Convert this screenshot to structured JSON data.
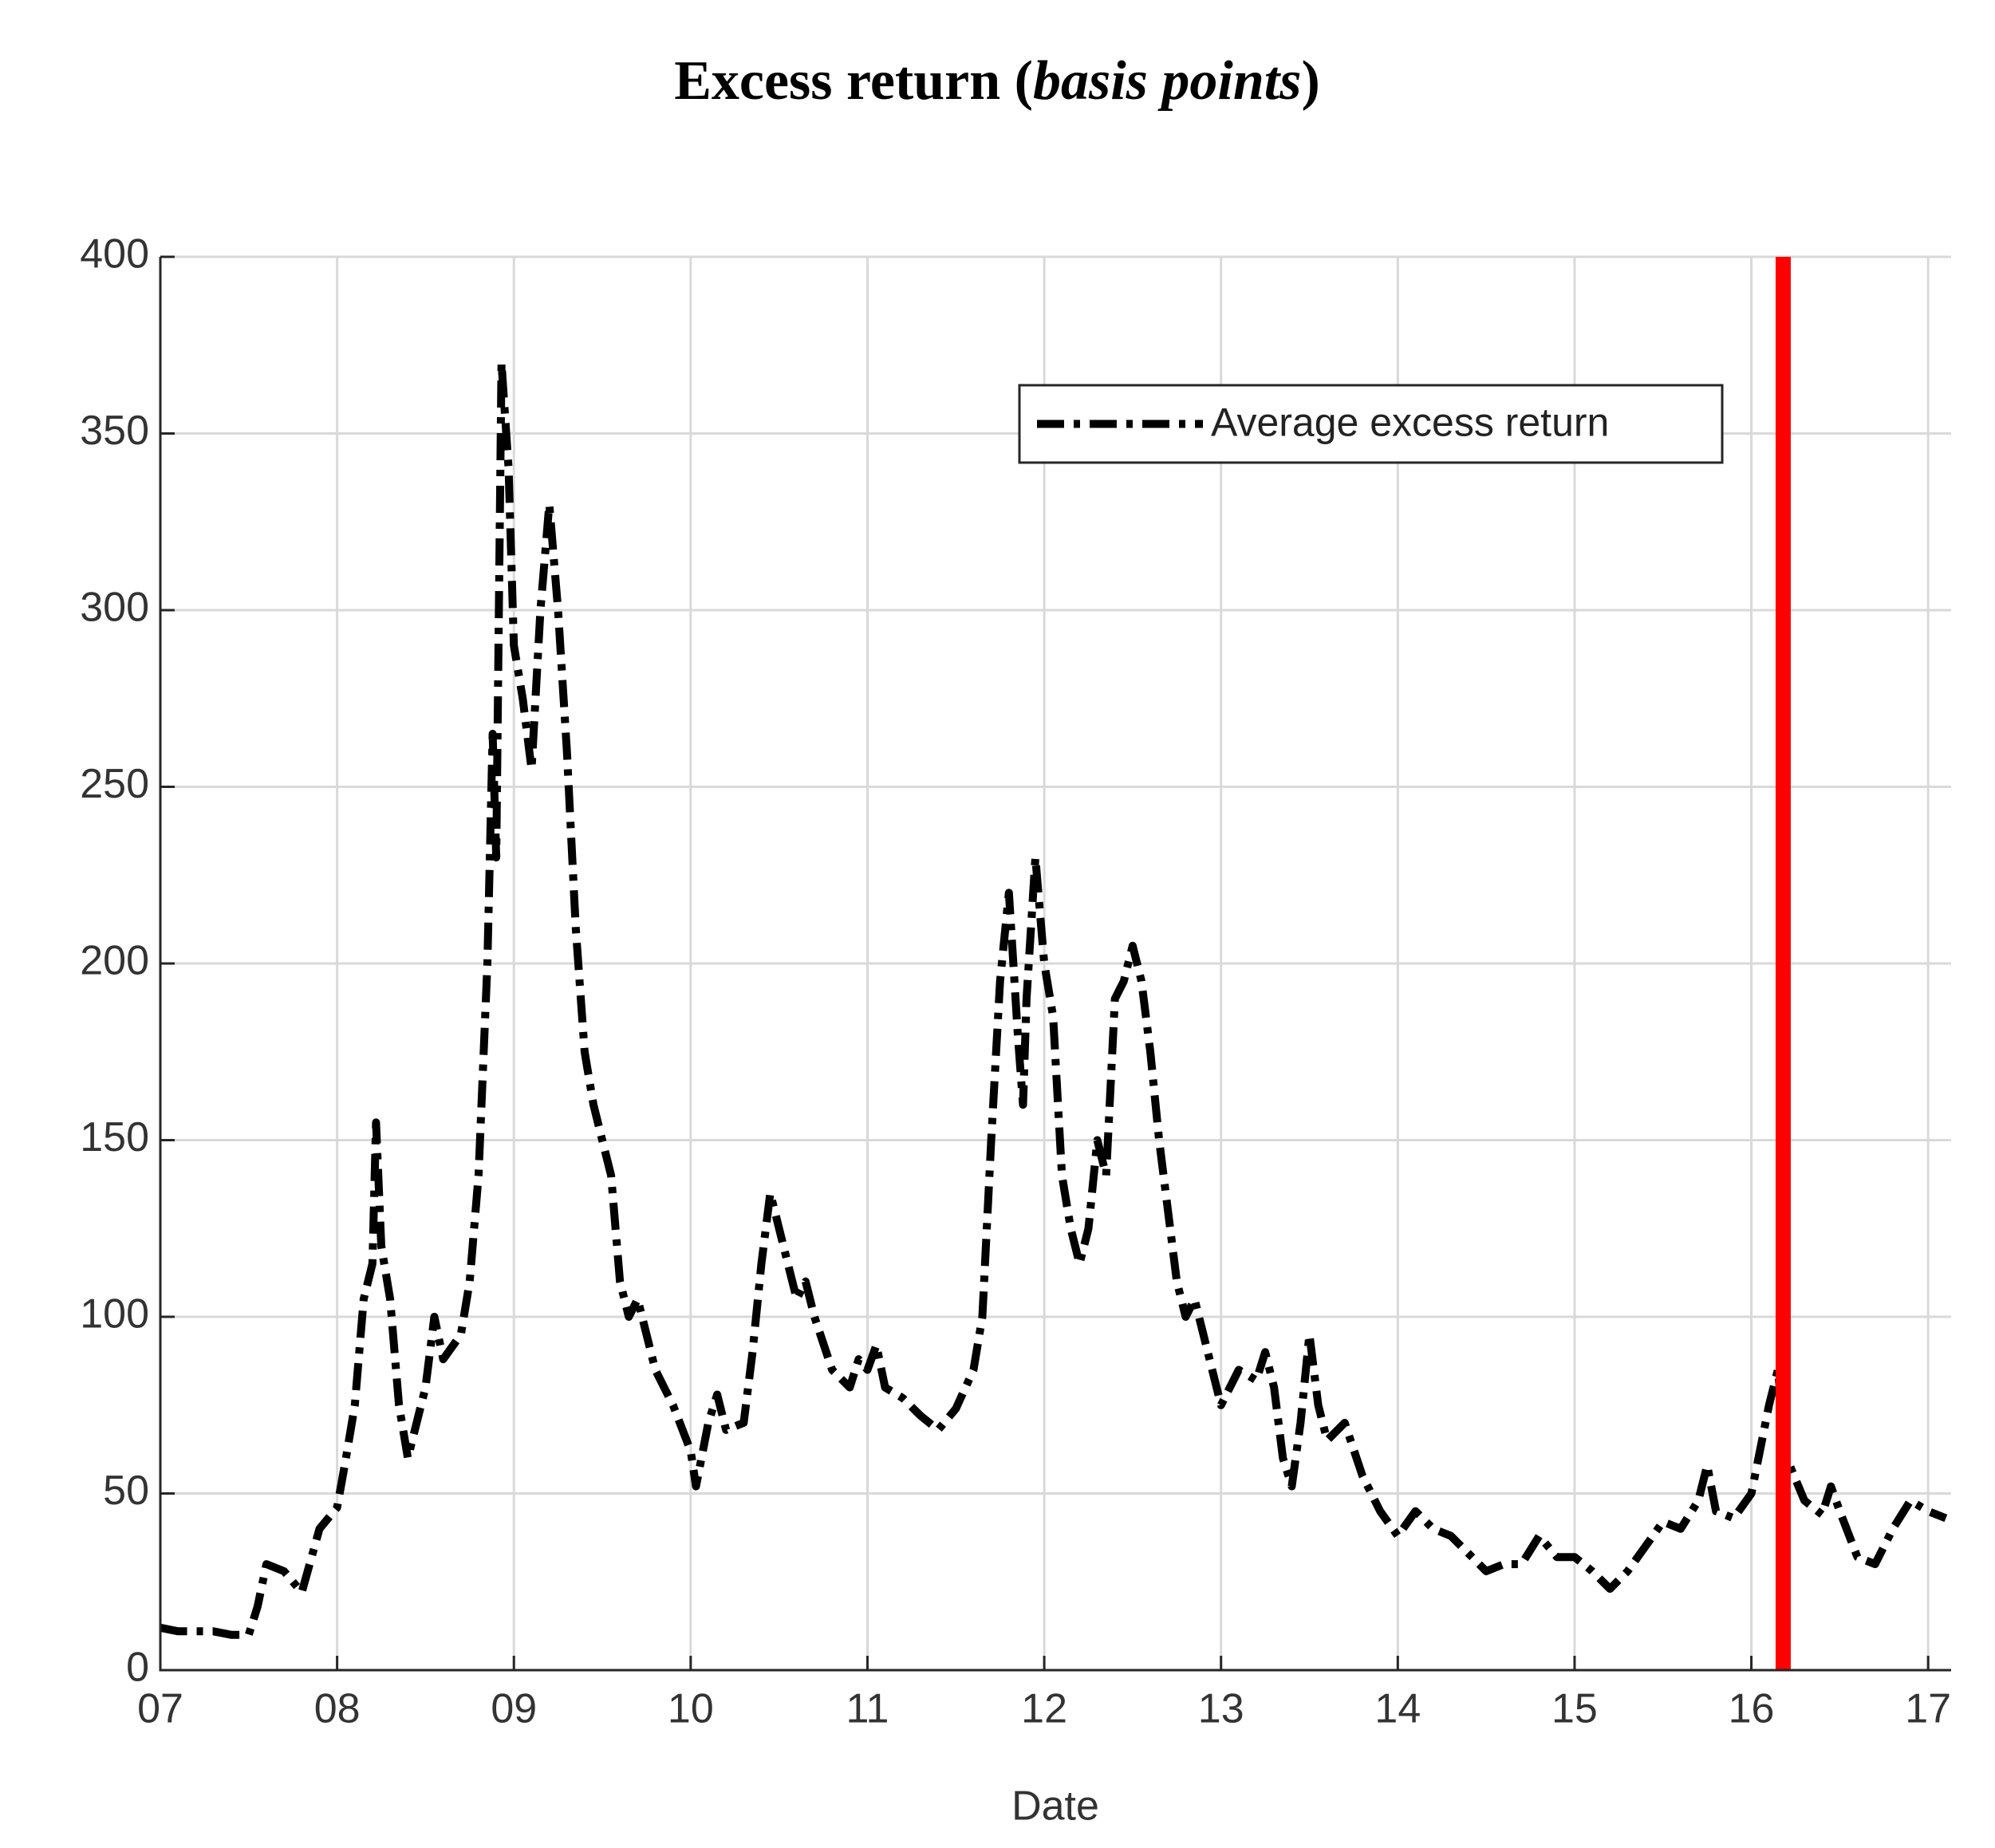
{
  "chart_data": {
    "type": "line",
    "title": [
      "Excess return (",
      "basis points",
      ")"
    ],
    "xlabel": "Date",
    "xlim": [
      7,
      17.13
    ],
    "ylim": [
      0,
      400
    ],
    "xticks": [
      {
        "value": 7,
        "label": "07"
      },
      {
        "value": 8,
        "label": "08"
      },
      {
        "value": 9,
        "label": "09"
      },
      {
        "value": 10,
        "label": "10"
      },
      {
        "value": 11,
        "label": "11"
      },
      {
        "value": 12,
        "label": "12"
      },
      {
        "value": 13,
        "label": "13"
      },
      {
        "value": 14,
        "label": "14"
      },
      {
        "value": 15,
        "label": "15"
      },
      {
        "value": 16,
        "label": "16"
      },
      {
        "value": 17,
        "label": "17"
      }
    ],
    "yticks": [
      0,
      50,
      100,
      150,
      200,
      250,
      300,
      350,
      400
    ],
    "grid": true,
    "legend": "upper right",
    "vline": {
      "x": 16.18,
      "color": "#ff0000"
    },
    "x": [
      7.0,
      7.1,
      7.2,
      7.3,
      7.4,
      7.5,
      7.55,
      7.6,
      7.7,
      7.8,
      7.9,
      8.0,
      8.05,
      8.1,
      8.15,
      8.2,
      8.22,
      8.25,
      8.3,
      8.35,
      8.4,
      8.45,
      8.5,
      8.55,
      8.6,
      8.7,
      8.75,
      8.8,
      8.85,
      8.88,
      8.9,
      8.93,
      8.97,
      9.0,
      9.05,
      9.1,
      9.15,
      9.2,
      9.25,
      9.3,
      9.35,
      9.4,
      9.45,
      9.5,
      9.55,
      9.6,
      9.65,
      9.7,
      9.75,
      9.8,
      9.9,
      10.0,
      10.03,
      10.1,
      10.15,
      10.2,
      10.3,
      10.35,
      10.4,
      10.45,
      10.5,
      10.55,
      10.6,
      10.65,
      10.7,
      10.8,
      10.9,
      10.95,
      11.0,
      11.05,
      11.1,
      11.2,
      11.3,
      11.4,
      11.5,
      11.6,
      11.65,
      11.7,
      11.75,
      11.8,
      11.85,
      11.88,
      11.9,
      11.95,
      12.0,
      12.05,
      12.1,
      12.15,
      12.2,
      12.25,
      12.3,
      12.35,
      12.4,
      12.45,
      12.5,
      12.55,
      12.6,
      12.65,
      12.7,
      12.75,
      12.8,
      12.85,
      12.9,
      13.0,
      13.05,
      13.1,
      13.2,
      13.25,
      13.3,
      13.35,
      13.4,
      13.45,
      13.5,
      13.55,
      13.6,
      13.7,
      13.8,
      13.9,
      14.0,
      14.1,
      14.2,
      14.3,
      14.4,
      14.5,
      14.6,
      14.7,
      14.8,
      14.9,
      15.0,
      15.1,
      15.2,
      15.3,
      15.4,
      15.5,
      15.6,
      15.7,
      15.75,
      15.8,
      15.9,
      16.0,
      16.1,
      16.15,
      16.2,
      16.3,
      16.4,
      16.45,
      16.5,
      16.6,
      16.7,
      16.8,
      16.9,
      17.0,
      17.1
    ],
    "series": [
      {
        "name": "Average excess return",
        "color": "#000000",
        "values": [
          12,
          11,
          11,
          11,
          10,
          10,
          18,
          30,
          28,
          22,
          40,
          46,
          60,
          75,
          105,
          115,
          155,
          120,
          105,
          75,
          60,
          70,
          80,
          100,
          88,
          95,
          110,
          140,
          200,
          265,
          230,
          370,
          340,
          290,
          275,
          255,
          300,
          330,
          300,
          260,
          210,
          175,
          160,
          150,
          140,
          110,
          100,
          105,
          95,
          85,
          75,
          62,
          52,
          70,
          78,
          68,
          70,
          90,
          115,
          135,
          125,
          115,
          105,
          110,
          100,
          85,
          80,
          88,
          85,
          92,
          80,
          77,
          72,
          68,
          74,
          85,
          100,
          150,
          195,
          220,
          180,
          160,
          190,
          230,
          200,
          185,
          140,
          125,
          115,
          125,
          150,
          140,
          190,
          195,
          205,
          195,
          175,
          150,
          130,
          110,
          100,
          105,
          95,
          75,
          80,
          85,
          82,
          90,
          80,
          60,
          52,
          70,
          95,
          75,
          65,
          70,
          55,
          45,
          38,
          45,
          40,
          38,
          33,
          28,
          30,
          30,
          38,
          32,
          32,
          28,
          23,
          28,
          35,
          42,
          40,
          48,
          58,
          45,
          43,
          50,
          75,
          85,
          60,
          48,
          44,
          52,
          45,
          32,
          30,
          40,
          48,
          45,
          43
        ]
      }
    ]
  }
}
